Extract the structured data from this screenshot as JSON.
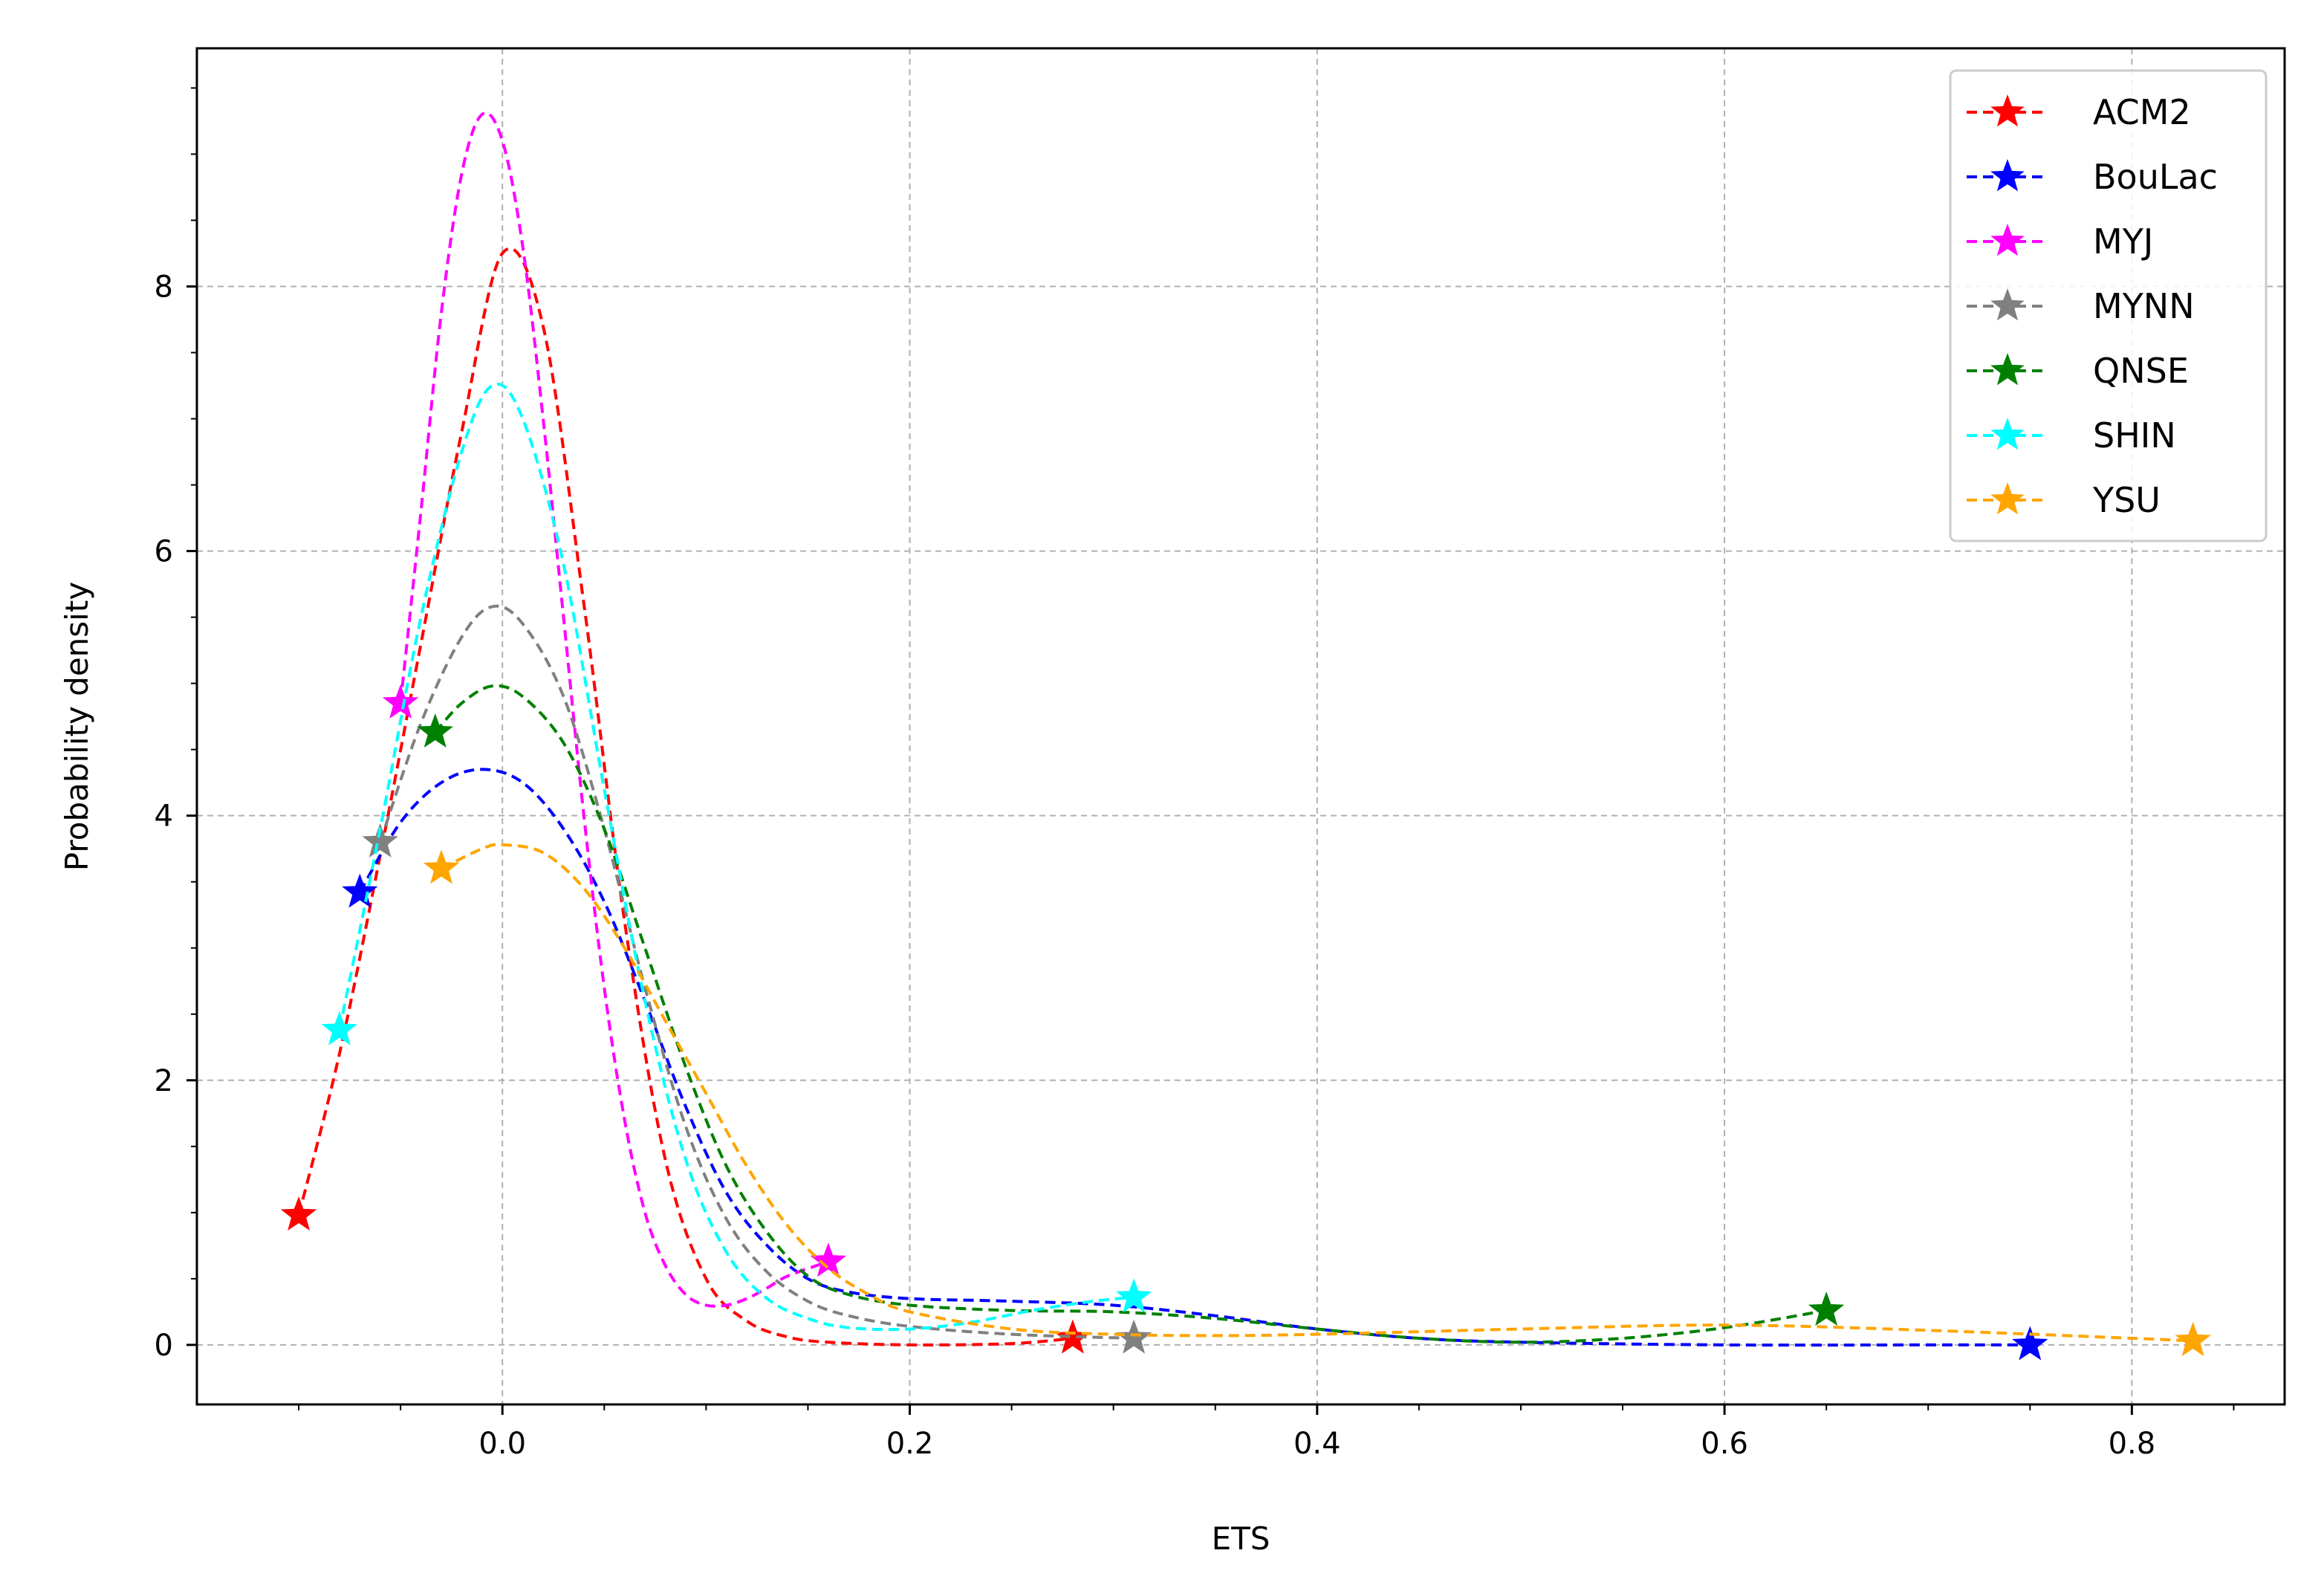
{
  "chart_data": {
    "type": "line",
    "title": "",
    "xlabel": "ETS",
    "ylabel": "Probability density",
    "xlim": [
      -0.15,
      0.875
    ],
    "ylim": [
      -0.45,
      9.8
    ],
    "xticks": [
      0.0,
      0.2,
      0.4,
      0.6,
      0.8
    ],
    "xtick_labels": [
      "0.0",
      "0.2",
      "0.4",
      "0.6",
      "0.8"
    ],
    "yticks": [
      0,
      2,
      4,
      6,
      8
    ],
    "ytick_labels": [
      "0",
      "2",
      "4",
      "6",
      "8"
    ],
    "grid": true,
    "legend_position": "top-right",
    "series": [
      {
        "name": "ACM2",
        "color": "#ff0000",
        "curve": [
          [
            -0.1,
            0.98
          ],
          [
            -0.08,
            2.2
          ],
          [
            -0.06,
            3.7
          ],
          [
            -0.04,
            5.3
          ],
          [
            -0.02,
            6.9
          ],
          [
            0.0,
            8.25
          ],
          [
            0.02,
            7.7
          ],
          [
            0.04,
            5.6
          ],
          [
            0.06,
            3.2
          ],
          [
            0.08,
            1.4
          ],
          [
            0.1,
            0.5
          ],
          [
            0.12,
            0.18
          ],
          [
            0.14,
            0.06
          ],
          [
            0.16,
            0.02
          ],
          [
            0.2,
            0.0
          ],
          [
            0.25,
            0.01
          ],
          [
            0.28,
            0.05
          ]
        ],
        "markers": [
          [
            -0.1,
            0.98
          ],
          [
            0.28,
            0.05
          ]
        ]
      },
      {
        "name": "BouLac",
        "color": "#0000ff",
        "curve": [
          [
            -0.07,
            3.42
          ],
          [
            -0.05,
            3.95
          ],
          [
            -0.03,
            4.25
          ],
          [
            -0.01,
            4.35
          ],
          [
            0.01,
            4.25
          ],
          [
            0.03,
            3.9
          ],
          [
            0.05,
            3.35
          ],
          [
            0.07,
            2.6
          ],
          [
            0.09,
            1.8
          ],
          [
            0.11,
            1.15
          ],
          [
            0.13,
            0.75
          ],
          [
            0.15,
            0.5
          ],
          [
            0.17,
            0.4
          ],
          [
            0.2,
            0.35
          ],
          [
            0.25,
            0.33
          ],
          [
            0.3,
            0.3
          ],
          [
            0.35,
            0.22
          ],
          [
            0.4,
            0.12
          ],
          [
            0.45,
            0.05
          ],
          [
            0.5,
            0.02
          ],
          [
            0.6,
            0.0
          ],
          [
            0.7,
            0.0
          ],
          [
            0.75,
            0.0
          ]
        ],
        "markers": [
          [
            -0.07,
            3.42
          ],
          [
            0.75,
            0.0
          ]
        ]
      },
      {
        "name": "MYJ",
        "color": "#ff00ff",
        "curve": [
          [
            -0.05,
            4.85
          ],
          [
            -0.04,
            6.3
          ],
          [
            -0.03,
            7.8
          ],
          [
            -0.02,
            8.85
          ],
          [
            -0.01,
            9.3
          ],
          [
            0.0,
            9.1
          ],
          [
            0.01,
            8.3
          ],
          [
            0.02,
            7.0
          ],
          [
            0.03,
            5.5
          ],
          [
            0.04,
            4.0
          ],
          [
            0.05,
            2.7
          ],
          [
            0.06,
            1.7
          ],
          [
            0.07,
            1.0
          ],
          [
            0.08,
            0.6
          ],
          [
            0.09,
            0.38
          ],
          [
            0.1,
            0.3
          ],
          [
            0.11,
            0.3
          ],
          [
            0.12,
            0.35
          ],
          [
            0.13,
            0.43
          ],
          [
            0.14,
            0.52
          ],
          [
            0.16,
            0.63
          ]
        ],
        "markers": [
          [
            -0.05,
            4.85
          ],
          [
            0.16,
            0.63
          ]
        ]
      },
      {
        "name": "MYNN",
        "color": "#808080",
        "curve": [
          [
            -0.06,
            3.8
          ],
          [
            -0.04,
            4.7
          ],
          [
            -0.02,
            5.35
          ],
          [
            -0.005,
            5.58
          ],
          [
            0.01,
            5.45
          ],
          [
            0.03,
            4.9
          ],
          [
            0.05,
            3.9
          ],
          [
            0.07,
            2.7
          ],
          [
            0.09,
            1.65
          ],
          [
            0.11,
            0.95
          ],
          [
            0.13,
            0.55
          ],
          [
            0.15,
            0.33
          ],
          [
            0.17,
            0.22
          ],
          [
            0.2,
            0.14
          ],
          [
            0.25,
            0.08
          ],
          [
            0.31,
            0.05
          ]
        ],
        "markers": [
          [
            -0.06,
            3.8
          ],
          [
            0.31,
            0.05
          ]
        ]
      },
      {
        "name": "QNSE",
        "color": "#008000",
        "curve": [
          [
            -0.033,
            4.63
          ],
          [
            -0.02,
            4.85
          ],
          [
            -0.005,
            4.98
          ],
          [
            0.01,
            4.9
          ],
          [
            0.03,
            4.55
          ],
          [
            0.05,
            3.9
          ],
          [
            0.07,
            3.0
          ],
          [
            0.09,
            2.1
          ],
          [
            0.11,
            1.35
          ],
          [
            0.13,
            0.85
          ],
          [
            0.15,
            0.52
          ],
          [
            0.17,
            0.38
          ],
          [
            0.2,
            0.3
          ],
          [
            0.25,
            0.26
          ],
          [
            0.3,
            0.25
          ],
          [
            0.35,
            0.2
          ],
          [
            0.4,
            0.12
          ],
          [
            0.45,
            0.05
          ],
          [
            0.5,
            0.02
          ],
          [
            0.55,
            0.05
          ],
          [
            0.6,
            0.13
          ],
          [
            0.65,
            0.26
          ]
        ],
        "markers": [
          [
            -0.033,
            4.63
          ],
          [
            0.65,
            0.26
          ]
        ]
      },
      {
        "name": "SHIN",
        "color": "#00ffff",
        "curve": [
          [
            -0.08,
            2.38
          ],
          [
            -0.06,
            3.9
          ],
          [
            -0.04,
            5.5
          ],
          [
            -0.02,
            6.75
          ],
          [
            -0.005,
            7.25
          ],
          [
            0.01,
            7.0
          ],
          [
            0.03,
            5.9
          ],
          [
            0.05,
            4.2
          ],
          [
            0.07,
            2.6
          ],
          [
            0.09,
            1.4
          ],
          [
            0.11,
            0.7
          ],
          [
            0.13,
            0.35
          ],
          [
            0.15,
            0.2
          ],
          [
            0.17,
            0.13
          ],
          [
            0.2,
            0.12
          ],
          [
            0.23,
            0.17
          ],
          [
            0.26,
            0.26
          ],
          [
            0.29,
            0.33
          ],
          [
            0.31,
            0.36
          ]
        ],
        "markers": [
          [
            -0.08,
            2.38
          ],
          [
            0.31,
            0.36
          ]
        ]
      },
      {
        "name": "YSU",
        "color": "#ffa500",
        "curve": [
          [
            -0.03,
            3.6
          ],
          [
            -0.01,
            3.75
          ],
          [
            0.0,
            3.78
          ],
          [
            0.02,
            3.72
          ],
          [
            0.04,
            3.45
          ],
          [
            0.06,
            3.0
          ],
          [
            0.08,
            2.45
          ],
          [
            0.1,
            1.9
          ],
          [
            0.12,
            1.35
          ],
          [
            0.14,
            0.9
          ],
          [
            0.16,
            0.58
          ],
          [
            0.18,
            0.38
          ],
          [
            0.2,
            0.25
          ],
          [
            0.25,
            0.12
          ],
          [
            0.3,
            0.08
          ],
          [
            0.35,
            0.07
          ],
          [
            0.4,
            0.08
          ],
          [
            0.5,
            0.12
          ],
          [
            0.6,
            0.15
          ],
          [
            0.7,
            0.11
          ],
          [
            0.8,
            0.05
          ],
          [
            0.83,
            0.03
          ]
        ],
        "markers": [
          [
            -0.03,
            3.6
          ],
          [
            0.83,
            0.03
          ]
        ]
      }
    ]
  }
}
